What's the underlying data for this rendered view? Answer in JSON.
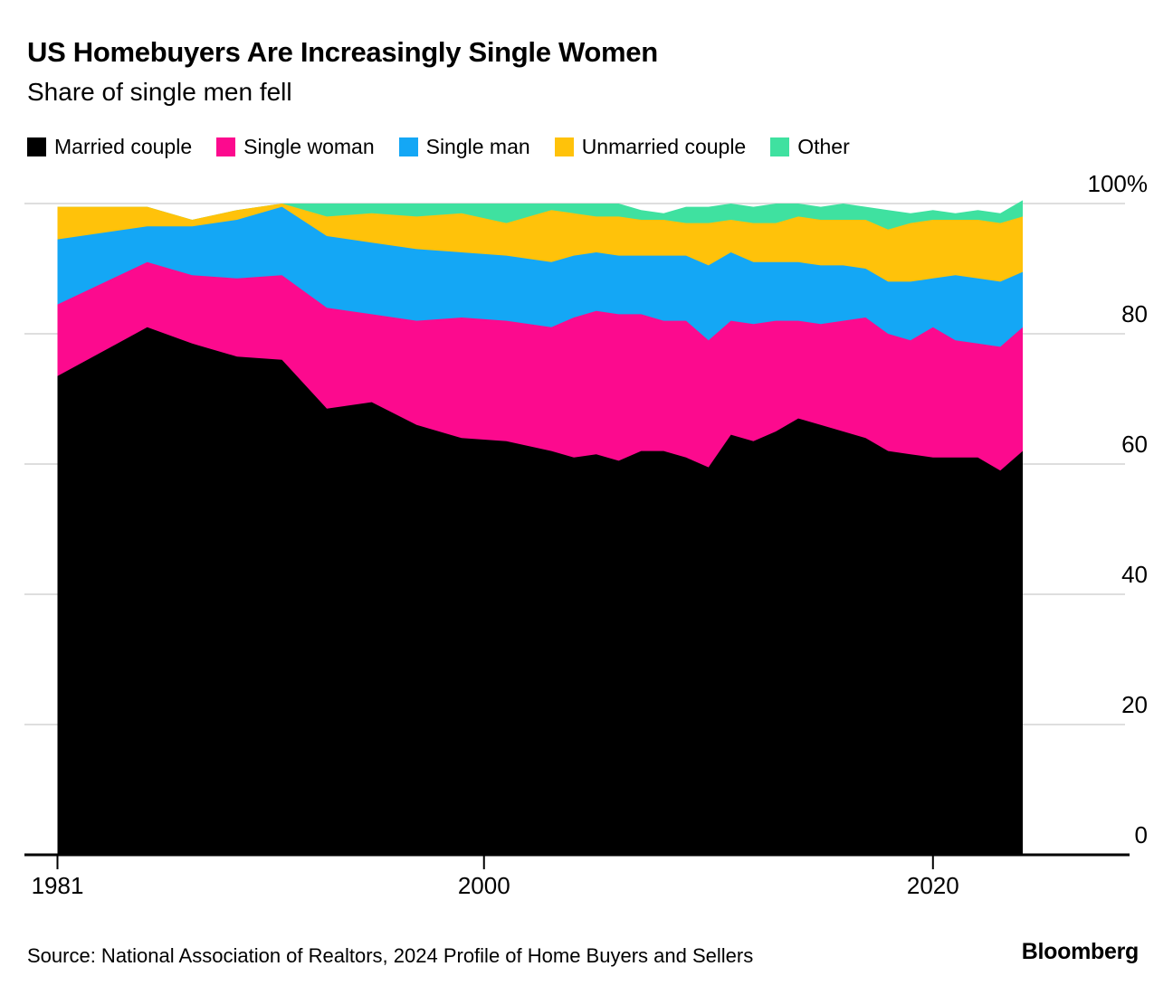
{
  "header": {
    "title": "US Homebuyers Are Increasingly Single Women",
    "subtitle": "Share of single men fell"
  },
  "legend": [
    {
      "label": "Married couple",
      "color": "#000000"
    },
    {
      "label": "Single woman",
      "color": "#FC0A8E"
    },
    {
      "label": "Single man",
      "color": "#14A7F5"
    },
    {
      "label": "Unmarried couple",
      "color": "#FFC20A"
    },
    {
      "label": "Other",
      "color": "#3FE1A0"
    }
  ],
  "y_axis": {
    "labels": [
      "100%",
      "80",
      "60",
      "40",
      "20",
      "0"
    ],
    "values": [
      100,
      80,
      60,
      40,
      20,
      0
    ]
  },
  "x_axis": {
    "ticks": [
      {
        "label": "1981",
        "year": 1981
      },
      {
        "label": "2000",
        "year": 2000
      },
      {
        "label": "2020",
        "year": 2020
      }
    ]
  },
  "footer": {
    "source": "Source: National Association of Realtors, 2024 Profile of Home Buyers and Sellers",
    "brand": "Bloomberg"
  },
  "theme": {
    "grid": "#DEDEDE",
    "axis": "#000000",
    "background": "#FFFFFF"
  },
  "chart_data": {
    "type": "area",
    "stacked": true,
    "unit": "percent",
    "title": "US Homebuyers Are Increasingly Single Women",
    "subtitle": "Share of single men fell",
    "ylim": [
      0,
      100
    ],
    "grid": true,
    "legend_position": "top",
    "x": [
      1981,
      1985,
      1987,
      1989,
      1991,
      1993,
      1995,
      1997,
      1999,
      2001,
      2003,
      2004,
      2005,
      2006,
      2007,
      2008,
      2009,
      2010,
      2011,
      2012,
      2013,
      2014,
      2015,
      2016,
      2017,
      2018,
      2019,
      2020,
      2021,
      2022,
      2023,
      2024
    ],
    "series": [
      {
        "name": "Married couple",
        "color": "#000000",
        "values": [
          73.5,
          81,
          78.5,
          76.5,
          76,
          68.5,
          69.5,
          66,
          64,
          63.5,
          62,
          61,
          61.5,
          60.5,
          62,
          62,
          61,
          59.5,
          64.5,
          63.5,
          65,
          67,
          66,
          65,
          64,
          62,
          61.5,
          61,
          61,
          61,
          59,
          62
        ]
      },
      {
        "name": "Single woman",
        "color": "#FC0A8E",
        "values": [
          11,
          10,
          10.5,
          12,
          13,
          15.5,
          13.5,
          16,
          18.5,
          18.5,
          19,
          21.5,
          22,
          22.5,
          21,
          20,
          21,
          19.5,
          17.5,
          18,
          17,
          15,
          15.5,
          17,
          18.5,
          18,
          17.5,
          20,
          18,
          17.5,
          19,
          19
        ]
      },
      {
        "name": "Single man",
        "color": "#14A7F5",
        "values": [
          10,
          5.5,
          7.5,
          9,
          10.5,
          11,
          11,
          11,
          10,
          10,
          10,
          9.5,
          9,
          9,
          9,
          10,
          10,
          11.5,
          10.5,
          9.5,
          9,
          9,
          9,
          8.5,
          7.5,
          8,
          9,
          7.5,
          10,
          10,
          10,
          8.5
        ]
      },
      {
        "name": "Unmarried couple",
        "color": "#FFC20A",
        "values": [
          5,
          3,
          1,
          1.5,
          0.5,
          3,
          4.5,
          5,
          6,
          5,
          8,
          6.5,
          5.5,
          6,
          5.5,
          5.5,
          5,
          6.5,
          5,
          6,
          6,
          7,
          7,
          7,
          7.5,
          8,
          9,
          9,
          8.5,
          9,
          9,
          8.5
        ]
      },
      {
        "name": "Other",
        "color": "#3FE1A0",
        "values": [
          0,
          0,
          0,
          0,
          0,
          2,
          1.5,
          2,
          1.5,
          3,
          1,
          1.5,
          2,
          2,
          1.5,
          1,
          2.5,
          2.5,
          2.5,
          2.5,
          3,
          2,
          2,
          2.5,
          2,
          3,
          1.5,
          1.5,
          1,
          1.5,
          1.5,
          2.5
        ]
      }
    ]
  }
}
